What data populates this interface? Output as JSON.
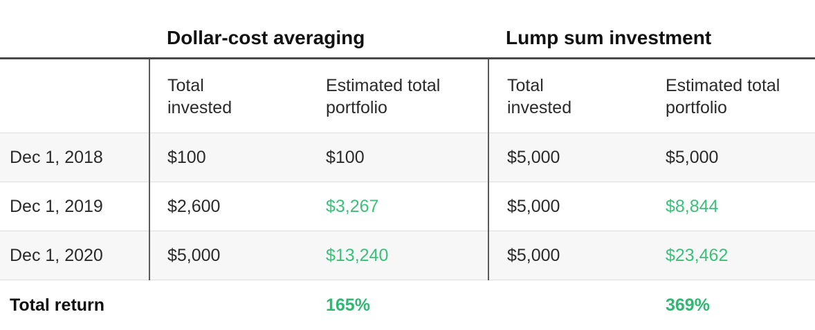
{
  "groups": {
    "dca_title": "Dollar-cost averaging",
    "lump_title": "Lump sum investment"
  },
  "subheaders": {
    "total_invested": [
      "Total",
      "invested"
    ],
    "estimated_total_portfolio": [
      "Estimated total",
      "portfolio"
    ]
  },
  "rows": [
    {
      "date": "Dec 1, 2018",
      "dca_invested": "$100",
      "dca_portfolio": "$100",
      "lump_invested": "$5,000",
      "lump_portfolio": "$5,000"
    },
    {
      "date": "Dec 1, 2019",
      "dca_invested": "$2,600",
      "dca_portfolio": "$3,267",
      "lump_invested": "$5,000",
      "lump_portfolio": "$8,844"
    },
    {
      "date": "Dec 1, 2020",
      "dca_invested": "$5,000",
      "dca_portfolio": "$13,240",
      "lump_invested": "$5,000",
      "lump_portfolio": "$23,462"
    }
  ],
  "total": {
    "label": "Total return",
    "dca_return": "165%",
    "lump_return": "369%"
  },
  "colors": {
    "gain_green": "#3bbf7a",
    "divider": "#4a4a4a",
    "row_shade": "#f7f7f7"
  }
}
